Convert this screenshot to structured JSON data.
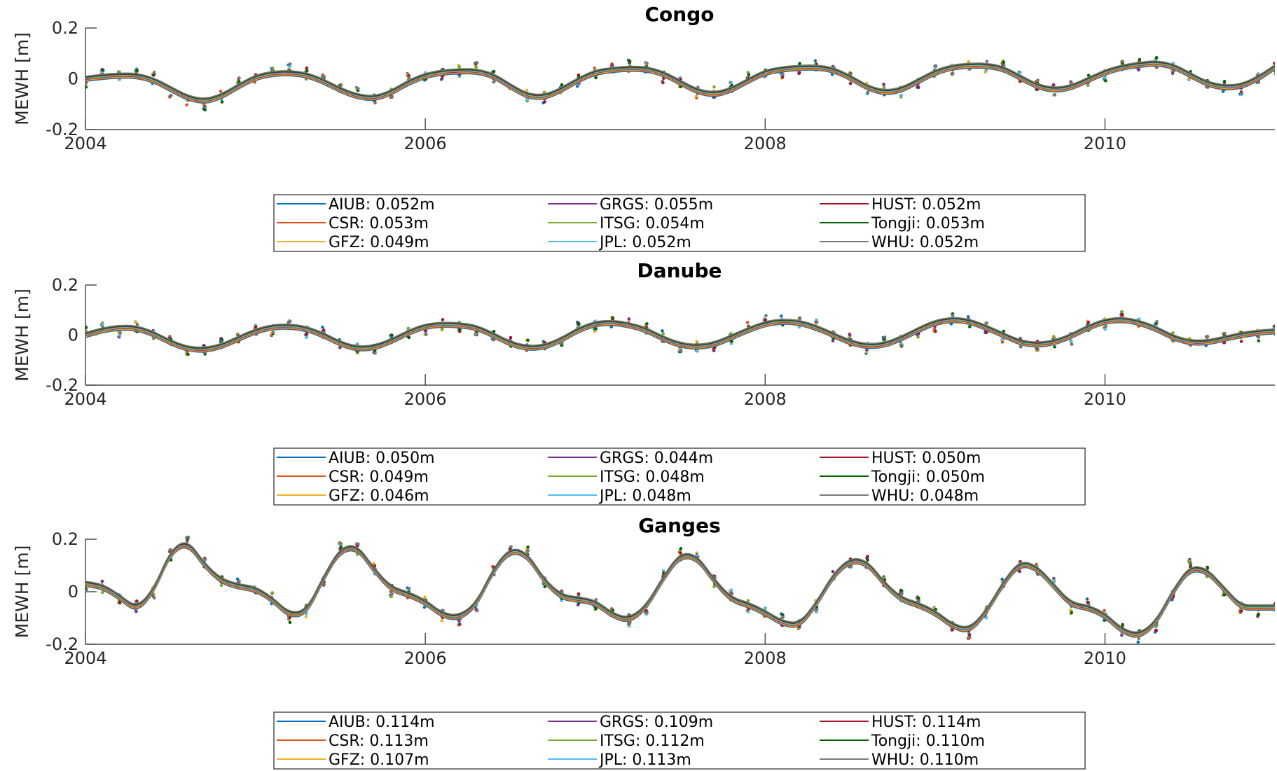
{
  "colors": {
    "AIUB": "#0072BD",
    "CSR": "#D95319",
    "GFZ": "#EDB120",
    "GRGS": "#7E2F8E",
    "ITSG": "#77AC30",
    "JPL": "#4DBEEE",
    "HUST": "#A2142F",
    "Tongji": "#006400",
    "WHU": "#777777"
  },
  "chart_data": [
    {
      "type": "line",
      "title": "Congo",
      "ylabel": "MEWH [m]",
      "xlabel": "",
      "xlim": [
        2004.0,
        2011.0
      ],
      "ylim": [
        -0.2,
        0.2
      ],
      "xticks": [
        "2004",
        "2006",
        "2008",
        "2010"
      ],
      "yticks": [
        "0.2",
        "0",
        "-0.2"
      ],
      "grid": false,
      "legend_position": "below",
      "model": {
        "x": [
          2004.0,
          2004.1,
          2004.2,
          2004.3,
          2004.4,
          2004.5,
          2004.6,
          2004.7,
          2004.8,
          2004.9,
          2005.0,
          2005.1,
          2005.2,
          2005.3,
          2005.4,
          2005.5,
          2005.6,
          2005.7,
          2005.8,
          2005.9,
          2006.0,
          2006.1,
          2006.2,
          2006.3,
          2006.4,
          2006.5,
          2006.6,
          2006.7,
          2006.8,
          2006.9,
          2007.0,
          2007.1,
          2007.2,
          2007.3,
          2007.4,
          2007.5,
          2007.6,
          2007.7,
          2007.8,
          2007.9,
          2008.0,
          2008.1,
          2008.2,
          2008.3,
          2008.4,
          2008.5,
          2008.6,
          2008.7,
          2008.8,
          2008.9,
          2009.0,
          2009.1,
          2009.2,
          2009.3,
          2009.4,
          2009.5,
          2009.6,
          2009.7,
          2009.8,
          2009.9,
          2010.0,
          2010.1,
          2010.2,
          2010.3,
          2010.4,
          2010.5,
          2010.6,
          2010.7,
          2010.8,
          2010.9,
          2011.0
        ],
        "y": [
          0.0,
          0.008,
          0.013,
          0.012,
          -0.005,
          -0.04,
          -0.075,
          -0.09,
          -0.07,
          -0.03,
          0.005,
          0.02,
          0.023,
          0.015,
          -0.01,
          -0.045,
          -0.07,
          -0.078,
          -0.055,
          -0.015,
          0.012,
          0.025,
          0.03,
          0.03,
          0.012,
          -0.03,
          -0.068,
          -0.073,
          -0.045,
          -0.005,
          0.025,
          0.035,
          0.04,
          0.038,
          0.02,
          -0.015,
          -0.05,
          -0.063,
          -0.045,
          -0.008,
          0.025,
          0.038,
          0.043,
          0.045,
          0.035,
          0.005,
          -0.035,
          -0.055,
          -0.045,
          -0.01,
          0.025,
          0.045,
          0.052,
          0.052,
          0.04,
          0.005,
          -0.03,
          -0.045,
          -0.035,
          -0.005,
          0.025,
          0.045,
          0.055,
          0.062,
          0.05,
          0.015,
          -0.02,
          -0.035,
          -0.03,
          0.0,
          0.045
        ]
      },
      "legend": {
        "AIUB": "AIUB: 0.052m",
        "CSR": "CSR: 0.053m",
        "GFZ": "GFZ: 0.049m",
        "GRGS": "GRGS: 0.055m",
        "ITSG": "ITSG: 0.054m",
        "JPL": "JPL: 0.052m",
        "HUST": "HUST: 0.052m",
        "Tongji": "Tongji: 0.053m",
        "WHU": "WHU: 0.052m"
      }
    },
    {
      "type": "line",
      "title": "Danube",
      "ylabel": "MEWH [m]",
      "xlabel": "",
      "xlim": [
        2004.0,
        2011.0
      ],
      "ylim": [
        -0.2,
        0.2
      ],
      "xticks": [
        "2004",
        "2006",
        "2008",
        "2010"
      ],
      "yticks": [
        "0.2",
        "0",
        "-0.2"
      ],
      "grid": false,
      "legend_position": "below",
      "model": {
        "x": [
          2004.0,
          2004.1,
          2004.2,
          2004.3,
          2004.4,
          2004.5,
          2004.6,
          2004.7,
          2004.8,
          2004.9,
          2005.0,
          2005.1,
          2005.2,
          2005.3,
          2005.4,
          2005.5,
          2005.6,
          2005.7,
          2005.8,
          2005.9,
          2006.0,
          2006.1,
          2006.2,
          2006.3,
          2006.4,
          2006.5,
          2006.6,
          2006.7,
          2006.8,
          2006.9,
          2007.0,
          2007.1,
          2007.2,
          2007.3,
          2007.4,
          2007.5,
          2007.6,
          2007.7,
          2007.8,
          2007.9,
          2008.0,
          2008.1,
          2008.2,
          2008.3,
          2008.4,
          2008.5,
          2008.6,
          2008.7,
          2008.8,
          2008.9,
          2009.0,
          2009.1,
          2009.2,
          2009.3,
          2009.4,
          2009.5,
          2009.6,
          2009.7,
          2009.8,
          2009.9,
          2010.0,
          2010.1,
          2010.2,
          2010.3,
          2010.4,
          2010.5,
          2010.6,
          2010.7,
          2010.8,
          2010.9,
          2011.0
        ],
        "y": [
          0.0,
          0.02,
          0.03,
          0.028,
          0.005,
          -0.03,
          -0.055,
          -0.06,
          -0.045,
          -0.015,
          0.015,
          0.032,
          0.035,
          0.025,
          0.0,
          -0.035,
          -0.055,
          -0.05,
          -0.025,
          0.01,
          0.035,
          0.042,
          0.04,
          0.03,
          0.0,
          -0.035,
          -0.052,
          -0.048,
          -0.02,
          0.02,
          0.045,
          0.05,
          0.04,
          0.02,
          -0.015,
          -0.04,
          -0.048,
          -0.038,
          -0.01,
          0.02,
          0.045,
          0.055,
          0.05,
          0.03,
          0.0,
          -0.03,
          -0.045,
          -0.04,
          -0.015,
          0.02,
          0.05,
          0.062,
          0.055,
          0.03,
          0.0,
          -0.03,
          -0.04,
          -0.03,
          -0.005,
          0.03,
          0.055,
          0.062,
          0.05,
          0.025,
          -0.01,
          -0.03,
          -0.03,
          -0.015,
          0.0,
          0.01,
          0.015
        ]
      },
      "legend": {
        "AIUB": "AIUB: 0.050m",
        "CSR": "CSR: 0.049m",
        "GFZ": "GFZ: 0.046m",
        "GRGS": "GRGS: 0.044m",
        "ITSG": "ITSG: 0.048m",
        "JPL": "JPL: 0.048m",
        "HUST": "HUST: 0.050m",
        "Tongji": "Tongji: 0.050m",
        "WHU": "WHU: 0.048m"
      }
    },
    {
      "type": "line",
      "title": "Ganges",
      "ylabel": "MEWH [m]",
      "xlabel": "",
      "xlim": [
        2004.0,
        2011.0
      ],
      "ylim": [
        -0.2,
        0.2
      ],
      "xticks": [
        "2004",
        "2006",
        "2008",
        "2010"
      ],
      "yticks": [
        "0.2",
        "0",
        "-0.2"
      ],
      "grid": false,
      "legend_position": "below",
      "model": {
        "x": [
          2004.0,
          2004.1,
          2004.2,
          2004.3,
          2004.4,
          2004.5,
          2004.6,
          2004.7,
          2004.8,
          2004.9,
          2005.0,
          2005.1,
          2005.2,
          2005.3,
          2005.4,
          2005.5,
          2005.6,
          2005.7,
          2005.8,
          2005.9,
          2006.0,
          2006.1,
          2006.2,
          2006.3,
          2006.4,
          2006.5,
          2006.6,
          2006.7,
          2006.8,
          2006.9,
          2007.0,
          2007.1,
          2007.2,
          2007.3,
          2007.4,
          2007.5,
          2007.6,
          2007.7,
          2007.8,
          2007.9,
          2008.0,
          2008.1,
          2008.2,
          2008.3,
          2008.4,
          2008.5,
          2008.6,
          2008.7,
          2008.8,
          2008.9,
          2009.0,
          2009.1,
          2009.2,
          2009.3,
          2009.4,
          2009.5,
          2009.6,
          2009.7,
          2009.8,
          2009.9,
          2010.0,
          2010.1,
          2010.2,
          2010.3,
          2010.4,
          2010.5,
          2010.6,
          2010.7,
          2010.8,
          2010.9,
          2011.0
        ],
        "y": [
          0.03,
          0.02,
          -0.02,
          -0.07,
          0.0,
          0.15,
          0.19,
          0.1,
          0.04,
          0.02,
          0.01,
          -0.03,
          -0.09,
          -0.08,
          0.05,
          0.16,
          0.17,
          0.08,
          0.01,
          -0.01,
          -0.04,
          -0.09,
          -0.1,
          -0.05,
          0.08,
          0.16,
          0.14,
          0.04,
          -0.02,
          -0.03,
          -0.04,
          -0.09,
          -0.11,
          -0.06,
          0.05,
          0.14,
          0.13,
          0.04,
          -0.03,
          -0.05,
          -0.08,
          -0.12,
          -0.13,
          -0.05,
          0.06,
          0.12,
          0.11,
          0.03,
          -0.03,
          -0.05,
          -0.08,
          -0.13,
          -0.15,
          -0.08,
          0.03,
          0.11,
          0.09,
          0.02,
          -0.05,
          -0.06,
          -0.09,
          -0.15,
          -0.17,
          -0.12,
          0.0,
          0.09,
          0.08,
          0.01,
          -0.06,
          -0.06,
          -0.06
        ]
      },
      "legend": {
        "AIUB": "AIUB: 0.114m",
        "CSR": "CSR: 0.113m",
        "GFZ": "GFZ: 0.107m",
        "GRGS": "GRGS: 0.109m",
        "ITSG": "ITSG: 0.112m",
        "JPL": "JPL: 0.113m",
        "HUST": "HUST: 0.114m",
        "Tongji": "Tongji: 0.110m",
        "WHU": "WHU: 0.110m"
      }
    }
  ]
}
